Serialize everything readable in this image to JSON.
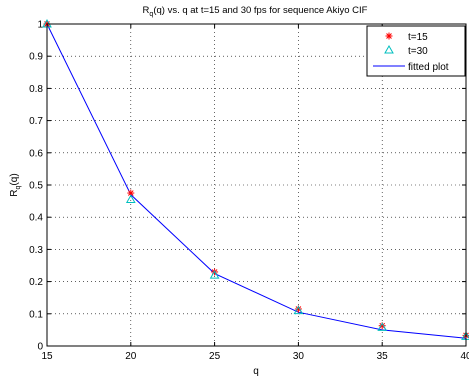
{
  "chart_data": {
    "type": "line",
    "title_main": "R",
    "title_sub": "q",
    "title_rest": "(q) vs. q at t=15 and 30 fps for sequence Akiyo CIF",
    "xlabel": "q",
    "ylabel_main": "R",
    "ylabel_sub": "q",
    "ylabel_rest": "(q)",
    "xlim": [
      15,
      40
    ],
    "ylim": [
      0,
      1
    ],
    "x_ticks": [
      15,
      20,
      25,
      30,
      35,
      40
    ],
    "y_ticks": [
      0,
      0.1,
      0.2,
      0.3,
      0.4,
      0.5,
      0.6,
      0.7,
      0.8,
      0.9,
      1
    ],
    "grid": true,
    "legend_position": "top-right",
    "series": [
      {
        "name": "t=15",
        "marker": "asterisk",
        "color": "#ff0000",
        "x": [
          15,
          20,
          25,
          30,
          35,
          40
        ],
        "y": [
          1.0,
          0.475,
          0.23,
          0.115,
          0.063,
          0.033
        ]
      },
      {
        "name": "t=30",
        "marker": "triangle",
        "color": "#00bfbf",
        "x": [
          15,
          20,
          25,
          30,
          35,
          40
        ],
        "y": [
          1.0,
          0.455,
          0.22,
          0.11,
          0.058,
          0.03
        ]
      },
      {
        "name": "fitted plot",
        "marker": "none",
        "color": "#0000ff",
        "x": [
          15,
          20,
          25,
          30,
          35,
          40
        ],
        "y": [
          1.0,
          0.47,
          0.225,
          0.105,
          0.05,
          0.024
        ]
      }
    ]
  }
}
